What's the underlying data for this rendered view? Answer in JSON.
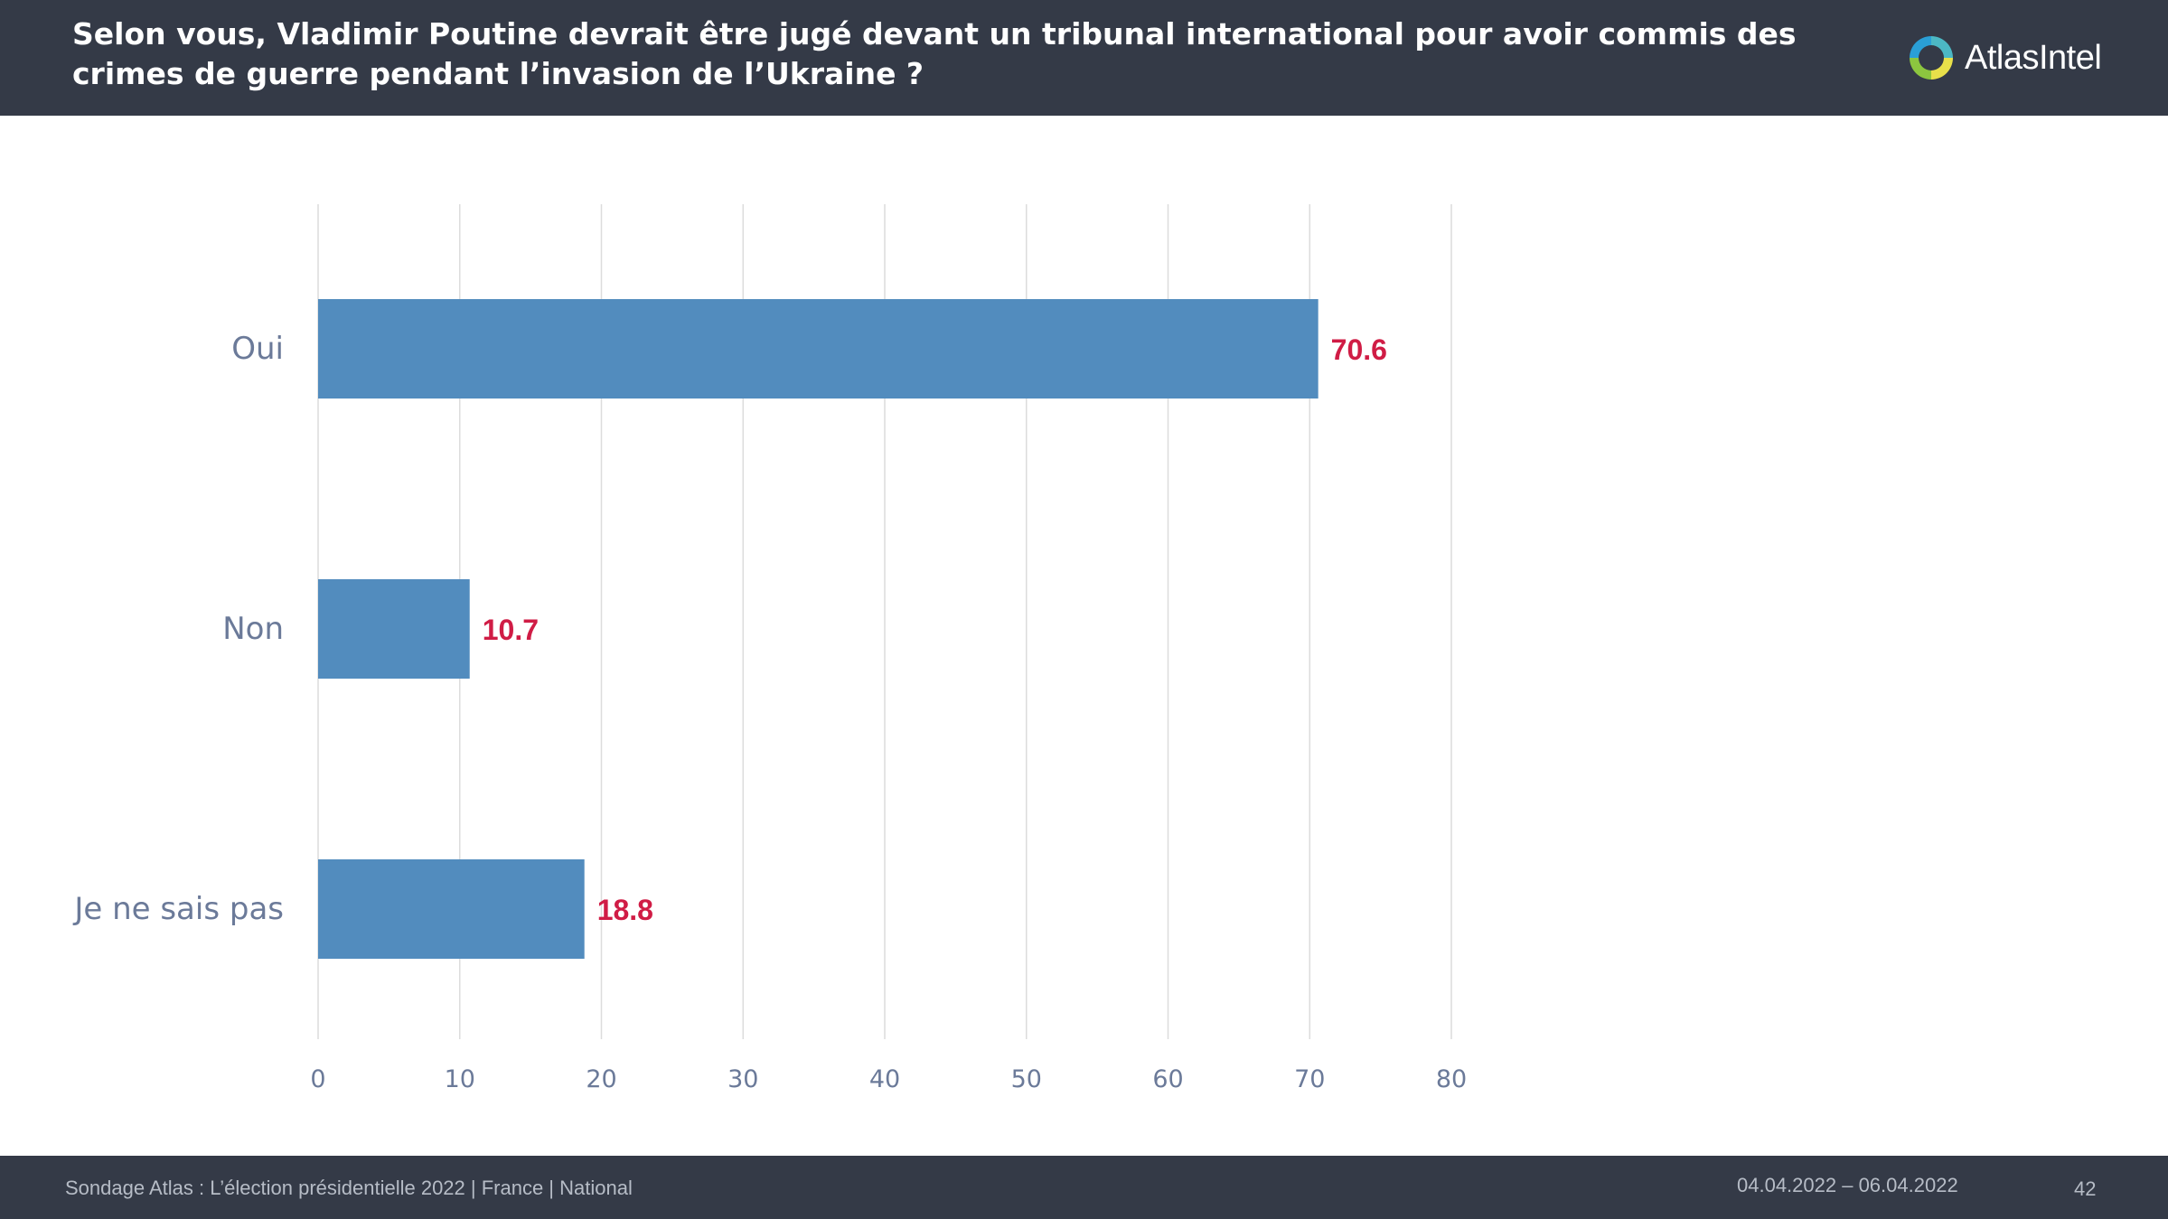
{
  "header": {
    "title": "Selon vous, Vladimir Poutine devrait être jugé devant un tribunal international pour avoir commis des crimes de guerre pendant l’invasion de l’Ukraine ?",
    "logo_text": "AtlasIntel"
  },
  "footer": {
    "source": "Sondage Atlas : L’élection présidentielle 2022 | France | National",
    "dates": "04.04.2022 – 06.04.2022",
    "page": "42"
  },
  "colors": {
    "header_bg": "#343a47",
    "bar": "#528cbe",
    "value_label": "#d01c45",
    "axis_text": "#6b7a99"
  },
  "chart_data": {
    "type": "bar",
    "orientation": "horizontal",
    "categories": [
      "Oui",
      "Non",
      "Je ne sais pas"
    ],
    "values": [
      70.6,
      10.7,
      18.8
    ],
    "value_labels": [
      "70.6",
      "10.7",
      "18.8"
    ],
    "xlim": [
      0,
      80
    ],
    "xticks": [
      "0",
      "10",
      "20",
      "30",
      "40",
      "50",
      "60",
      "70",
      "80"
    ],
    "grid": true,
    "legend": "none"
  }
}
